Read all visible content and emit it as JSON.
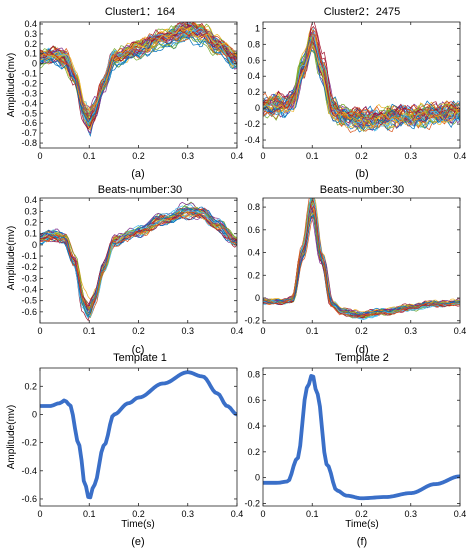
{
  "colors": [
    "#0072BD",
    "#D95319",
    "#EDB120",
    "#7E2F8E",
    "#77AC30",
    "#4DBEEE",
    "#A2142F"
  ],
  "template_color": "#3a6fc8",
  "chart_data": [
    {
      "type": "line",
      "panel": "(a)",
      "title": "Cluster1：164",
      "ylabel": "Amplitude(mv)",
      "xlabel": "",
      "xlim": [
        0,
        0.4
      ],
      "ylim": [
        -0.85,
        0.42
      ],
      "xticks": [
        0,
        0.1,
        0.2,
        0.3,
        0.4
      ],
      "yticks": [
        0.4,
        0.3,
        0.2,
        0.1,
        0,
        -0.1,
        -0.2,
        -0.3,
        -0.4,
        -0.5,
        -0.6,
        -0.7,
        -0.8
      ],
      "overlay_count": 164,
      "ensemble": true,
      "spread": 0.06,
      "series": [
        {
          "x": [
            0,
            0.03,
            0.05,
            0.07,
            0.09,
            0.1,
            0.11,
            0.13,
            0.15,
            0.2,
            0.25,
            0.3,
            0.33,
            0.36,
            0.4
          ],
          "values": [
            0.06,
            0.08,
            0.05,
            -0.15,
            -0.5,
            -0.6,
            -0.48,
            -0.2,
            0.05,
            0.15,
            0.25,
            0.33,
            0.3,
            0.18,
            0.03
          ]
        }
      ]
    },
    {
      "type": "line",
      "panel": "(b)",
      "title": "Cluster2：2475",
      "ylabel": "",
      "xlabel": "",
      "xlim": [
        0,
        0.4
      ],
      "ylim": [
        -0.5,
        1.08
      ],
      "xticks": [
        0,
        0.1,
        0.2,
        0.3,
        0.4
      ],
      "yticks": [
        1,
        0.8,
        0.6,
        0.4,
        0.2,
        0,
        -0.2,
        -0.4
      ],
      "overlay_count": 2475,
      "ensemble": true,
      "spread": 0.1,
      "series": [
        {
          "x": [
            0,
            0.04,
            0.06,
            0.08,
            0.1,
            0.12,
            0.14,
            0.16,
            0.2,
            0.25,
            0.3,
            0.35,
            0.4
          ],
          "values": [
            0.02,
            0.03,
            0.1,
            0.5,
            0.88,
            0.5,
            0.0,
            -0.1,
            -0.15,
            -0.12,
            -0.1,
            -0.08,
            -0.05
          ]
        }
      ]
    },
    {
      "type": "line",
      "panel": "(c)",
      "title": "Beats-number:30",
      "ylabel": "Amplitude(mv)",
      "xlabel": "",
      "xlim": [
        0,
        0.4
      ],
      "ylim": [
        -0.7,
        0.42
      ],
      "xticks": [
        0,
        0.1,
        0.2,
        0.3,
        0.4
      ],
      "yticks": [
        0.4,
        0.3,
        0.2,
        0.1,
        0,
        -0.1,
        -0.2,
        -0.3,
        -0.4,
        -0.5,
        -0.6
      ],
      "overlay_count": 30,
      "ensemble": true,
      "spread": 0.035,
      "series": [
        {
          "x": [
            0,
            0.03,
            0.05,
            0.07,
            0.09,
            0.1,
            0.11,
            0.13,
            0.15,
            0.2,
            0.25,
            0.3,
            0.33,
            0.36,
            0.4
          ],
          "values": [
            0.06,
            0.08,
            0.06,
            -0.15,
            -0.52,
            -0.6,
            -0.48,
            -0.2,
            0.03,
            0.12,
            0.22,
            0.3,
            0.28,
            0.17,
            0.03
          ]
        }
      ]
    },
    {
      "type": "line",
      "panel": "(d)",
      "title": "Beats-number:30",
      "ylabel": "",
      "xlabel": "",
      "xlim": [
        0,
        0.4
      ],
      "ylim": [
        -0.22,
        0.88
      ],
      "xticks": [
        0,
        0.1,
        0.2,
        0.3,
        0.4
      ],
      "yticks": [
        0.8,
        0.6,
        0.4,
        0.2,
        0,
        -0.2
      ],
      "overlay_count": 30,
      "ensemble": true,
      "spread": 0.02,
      "series": [
        {
          "x": [
            0,
            0.04,
            0.06,
            0.08,
            0.1,
            0.12,
            0.14,
            0.16,
            0.2,
            0.25,
            0.3,
            0.35,
            0.4
          ],
          "values": [
            -0.03,
            -0.03,
            -0.01,
            0.4,
            0.82,
            0.35,
            -0.05,
            -0.12,
            -0.15,
            -0.12,
            -0.08,
            -0.05,
            -0.04
          ]
        }
      ]
    },
    {
      "type": "line",
      "panel": "(e)",
      "title": "Template 1",
      "ylabel": "Amplitude(mv)",
      "xlabel": "Time(s)",
      "xlim": [
        0,
        0.4
      ],
      "ylim": [
        -0.65,
        0.33
      ],
      "xticks": [
        0,
        0.1,
        0.2,
        0.3,
        0.4
      ],
      "yticks": [
        0.2,
        0,
        -0.2,
        -0.4,
        -0.6
      ],
      "ensemble": false,
      "series": [
        {
          "x": [
            0,
            0.02,
            0.04,
            0.05,
            0.06,
            0.08,
            0.09,
            0.1,
            0.11,
            0.13,
            0.15,
            0.18,
            0.2,
            0.25,
            0.3,
            0.33,
            0.36,
            0.38,
            0.4
          ],
          "values": [
            0.06,
            0.06,
            0.08,
            0.1,
            0.07,
            -0.22,
            -0.48,
            -0.6,
            -0.5,
            -0.22,
            0.0,
            0.08,
            0.12,
            0.22,
            0.3,
            0.27,
            0.15,
            0.06,
            0.0
          ]
        }
      ]
    },
    {
      "type": "line",
      "panel": "(f)",
      "title": "Template 2",
      "ylabel": "",
      "xlabel": "Time(s)",
      "xlim": [
        0,
        0.4
      ],
      "ylim": [
        -0.22,
        0.85
      ],
      "xticks": [
        0,
        0.1,
        0.2,
        0.3,
        0.4
      ],
      "yticks": [
        0.8,
        0.6,
        0.4,
        0.2,
        0,
        -0.2
      ],
      "ensemble": false,
      "series": [
        {
          "x": [
            0,
            0.03,
            0.05,
            0.07,
            0.09,
            0.1,
            0.11,
            0.13,
            0.15,
            0.17,
            0.2,
            0.25,
            0.3,
            0.35,
            0.4
          ],
          "values": [
            -0.04,
            -0.04,
            -0.03,
            0.15,
            0.7,
            0.8,
            0.65,
            0.1,
            -0.1,
            -0.14,
            -0.16,
            -0.15,
            -0.12,
            -0.05,
            0.01
          ]
        }
      ]
    }
  ]
}
